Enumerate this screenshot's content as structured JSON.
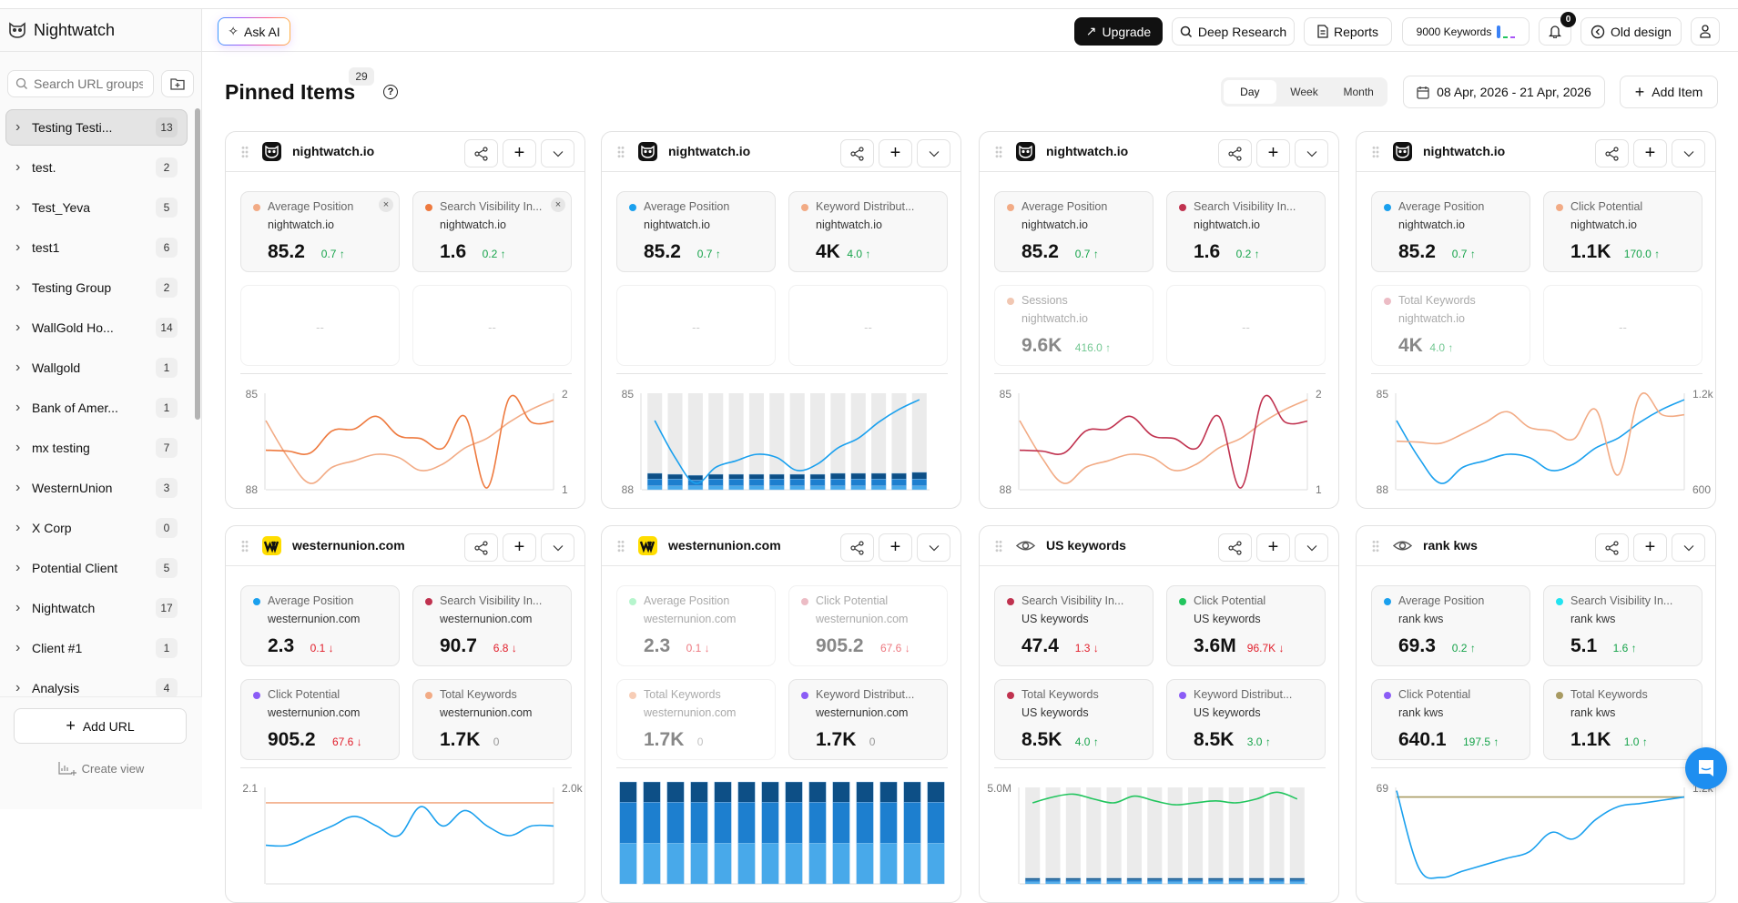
{
  "app": {
    "name": "Nightwatch"
  },
  "sidebar": {
    "search_placeholder": "Search URL groups",
    "groups": [
      {
        "label": "Testing Testi...",
        "count": "13",
        "selected": true
      },
      {
        "label": "test.",
        "count": "2"
      },
      {
        "label": "Test_Yeva",
        "count": "5"
      },
      {
        "label": "test1",
        "count": "6"
      },
      {
        "label": "Testing Group",
        "count": "2"
      },
      {
        "label": "WallGold Ho...",
        "count": "14"
      },
      {
        "label": "Wallgold",
        "count": "1"
      },
      {
        "label": "Bank of Amer...",
        "count": "1"
      },
      {
        "label": "mx testing",
        "count": "7"
      },
      {
        "label": "WesternUnion",
        "count": "3"
      },
      {
        "label": "X Corp",
        "count": "0"
      },
      {
        "label": "Potential Client",
        "count": "5"
      },
      {
        "label": "Nightwatch",
        "count": "17"
      },
      {
        "label": "Client #1",
        "count": "1"
      },
      {
        "label": "Analysis",
        "count": "4"
      }
    ],
    "add_url": "Add URL",
    "create_view": "Create view"
  },
  "topbar": {
    "ask_ai": "Ask AI",
    "upgrade": "Upgrade",
    "deep_research": "Deep Research",
    "reports": "Reports",
    "keywords": "9000 Keywords",
    "notifications": "0",
    "old_design": "Old design"
  },
  "page": {
    "title": "Pinned Items",
    "count": "29",
    "help": "?",
    "periods": [
      "Day",
      "Week",
      "Month"
    ],
    "active_period": "Day",
    "date_range": "08 Apr, 2026 - 21 Apr, 2026",
    "add_item": "Add Item"
  },
  "colors": {
    "up": "#16a34a",
    "down": "#e11d2a",
    "accent": "#1e8ef0"
  },
  "cards": [
    {
      "title": "nightwatch.io",
      "icon": "nightwatch-logo",
      "metrics": [
        {
          "label": "Average Position",
          "sub": "nightwatch.io",
          "value": "85.2",
          "delta": "0.7 ↑",
          "dir": "up",
          "color": "#f2ab85",
          "active": true,
          "removable": true
        },
        {
          "label": "Search Visibility In...",
          "sub": "nightwatch.io",
          "value": "1.6",
          "delta": "0.2 ↑",
          "dir": "up",
          "color": "#ee7a3f",
          "active": true,
          "removable": true
        },
        {
          "empty": true,
          "placeholder": "--"
        },
        {
          "empty": true,
          "placeholder": "--"
        }
      ],
      "chart": {
        "left_top": "85",
        "left_bottom": "88",
        "right_top": "2",
        "right_bottom": "1",
        "ylim_left": [
          85,
          88
        ],
        "ylim_right": [
          1,
          2
        ],
        "left_inverted": true,
        "series": [
          {
            "color": "#f2ab85",
            "axis": "left",
            "values": [
              85.85,
              87.0,
              87.8,
              87.3,
              87.1,
              86.9,
              87.0,
              87.4,
              87.2,
              86.7,
              86.4,
              85.9,
              85.5,
              85.2
            ]
          },
          {
            "color": "#ee7a3f",
            "axis": "right",
            "values": [
              1.41,
              1.4,
              1.38,
              1.61,
              1.63,
              1.76,
              1.56,
              1.53,
              1.43,
              1.76,
              1.02,
              1.95,
              1.7,
              1.71
            ]
          }
        ]
      }
    },
    {
      "title": "nightwatch.io",
      "icon": "nightwatch-logo",
      "metrics": [
        {
          "label": "Average Position",
          "sub": "nightwatch.io",
          "value": "85.2",
          "delta": "0.7 ↑",
          "dir": "up",
          "color": "#1aa0ee",
          "active": true
        },
        {
          "label": "Keyword Distribut...",
          "sub": "nightwatch.io",
          "value": "4K",
          "delta": "4.0 ↑",
          "dir": "up",
          "color": "#f2ab85",
          "active": true
        },
        {
          "empty": true,
          "placeholder": "--"
        },
        {
          "empty": true,
          "placeholder": "--"
        }
      ],
      "chart": {
        "left_top": "85",
        "left_bottom": "88",
        "ylim_left": [
          85,
          88
        ],
        "left_inverted": true,
        "bars": {
          "colors": [
            "#48a9ea",
            "#1d7fcf",
            "#0d4f86"
          ],
          "background": "#ebebeb",
          "segments_pct": [
            [
              4,
              7,
              6
            ],
            [
              4,
              7,
              5
            ],
            [
              4,
              6,
              5
            ],
            [
              4,
              7,
              5
            ],
            [
              4,
              7,
              5
            ],
            [
              4,
              7,
              5
            ],
            [
              4,
              7,
              5
            ],
            [
              4,
              7,
              5
            ],
            [
              4,
              7,
              5
            ],
            [
              4,
              7,
              6
            ],
            [
              4,
              7,
              6
            ],
            [
              4,
              7,
              6
            ],
            [
              4,
              7,
              6
            ],
            [
              4,
              7,
              7
            ]
          ]
        },
        "series": [
          {
            "color": "#1aa0ee",
            "axis": "left",
            "values": [
              85.85,
              87.0,
              87.8,
              87.3,
              87.1,
              86.9,
              87.0,
              87.4,
              87.2,
              86.7,
              86.4,
              85.9,
              85.5,
              85.2
            ]
          }
        ]
      }
    },
    {
      "title": "nightwatch.io",
      "icon": "nightwatch-logo",
      "metrics": [
        {
          "label": "Average Position",
          "sub": "nightwatch.io",
          "value": "85.2",
          "delta": "0.7 ↑",
          "dir": "up",
          "color": "#f2ab85",
          "active": true
        },
        {
          "label": "Search Visibility In...",
          "sub": "nightwatch.io",
          "value": "1.6",
          "delta": "0.2 ↑",
          "dir": "up",
          "color": "#c0324f",
          "active": true
        },
        {
          "label": "Sessions",
          "sub": "nightwatch.io",
          "value": "9.6K",
          "delta": "416.0 ↑",
          "dir": "up",
          "color": "#e8a27e",
          "active": false
        },
        {
          "empty": true,
          "placeholder": "--"
        }
      ],
      "chart": {
        "left_top": "85",
        "left_bottom": "88",
        "right_top": "2",
        "right_bottom": "1",
        "ylim_left": [
          85,
          88
        ],
        "ylim_right": [
          1,
          2
        ],
        "left_inverted": true,
        "series": [
          {
            "color": "#f2ab85",
            "axis": "left",
            "values": [
              85.85,
              87.0,
              87.8,
              87.3,
              87.1,
              86.9,
              87.0,
              87.4,
              87.2,
              86.7,
              86.4,
              85.9,
              85.5,
              85.2
            ]
          },
          {
            "color": "#c0324f",
            "axis": "right",
            "values": [
              1.41,
              1.4,
              1.38,
              1.61,
              1.63,
              1.76,
              1.56,
              1.53,
              1.43,
              1.76,
              1.02,
              1.95,
              1.7,
              1.71
            ]
          }
        ]
      }
    },
    {
      "title": "nightwatch.io",
      "icon": "nightwatch-logo",
      "metrics": [
        {
          "label": "Average Position",
          "sub": "nightwatch.io",
          "value": "85.2",
          "delta": "0.7 ↑",
          "dir": "up",
          "color": "#1aa0ee",
          "active": true
        },
        {
          "label": "Click Potential",
          "sub": "nightwatch.io",
          "value": "1.1K",
          "delta": "170.0 ↑",
          "dir": "up",
          "color": "#f2ab85",
          "active": true
        },
        {
          "label": "Total Keywords",
          "sub": "nightwatch.io",
          "value": "4K",
          "delta": "4.0 ↑",
          "dir": "up",
          "color": "#e0909f",
          "active": false
        },
        {
          "empty": true,
          "placeholder": "--"
        }
      ],
      "chart": {
        "left_top": "85",
        "left_bottom": "88",
        "right_top": "1.2k",
        "right_bottom": "600",
        "ylim_left": [
          85,
          88
        ],
        "ylim_right": [
          600,
          1200
        ],
        "left_inverted": true,
        "series": [
          {
            "color": "#1aa0ee",
            "axis": "left",
            "values": [
              85.85,
              87.0,
              87.8,
              87.3,
              87.1,
              86.9,
              87.0,
              87.4,
              87.2,
              86.7,
              86.4,
              85.9,
              85.5,
              85.2
            ]
          },
          {
            "color": "#f2ab85",
            "axis": "right",
            "values": [
              902,
              896,
              889,
              948,
              1017,
              1085,
              988,
              966,
              915,
              1098,
              691,
              1185,
              1066,
              1066
            ]
          }
        ]
      }
    },
    {
      "title": "westernunion.com",
      "icon": "westernunion-logo",
      "metrics": [
        {
          "label": "Average Position",
          "sub": "westernunion.com",
          "value": "2.3",
          "delta": "0.1 ↓",
          "dir": "down",
          "color": "#1aa0ee",
          "active": true
        },
        {
          "label": "Search Visibility In...",
          "sub": "westernunion.com",
          "value": "90.7",
          "delta": "6.8 ↓",
          "dir": "down",
          "color": "#c0324f",
          "active": true
        },
        {
          "label": "Click Potential",
          "sub": "westernunion.com",
          "value": "905.2",
          "delta": "67.6 ↓",
          "dir": "down",
          "color": "#8b5cf6",
          "active": true
        },
        {
          "label": "Total Keywords",
          "sub": "westernunion.com",
          "value": "1.7K",
          "delta": "0",
          "dir": "none",
          "color": "#f2ab85",
          "active": true
        }
      ],
      "chart": {
        "left_top": "2.1",
        "right_top": "2.0k",
        "ylim_left": [
          2.1,
          2.6
        ],
        "ylim_right": [
          1500,
          2000
        ],
        "left_inverted": true,
        "series": [
          {
            "color": "#f2ab85",
            "axis": "right",
            "values": [
              1920,
              1920,
              1920,
              1920,
              1920,
              1920,
              1920,
              1920,
              1920,
              1920,
              1920,
              1920,
              1920,
              1920
            ]
          },
          {
            "color": "#1aa0ee",
            "axis": "left",
            "values": [
              2.4,
              2.4,
              2.35,
              2.3,
              2.25,
              2.3,
              2.35,
              2.2,
              2.3,
              2.22,
              2.3,
              2.35,
              2.3,
              2.3
            ]
          }
        ]
      }
    },
    {
      "title": "westernunion.com",
      "icon": "westernunion-logo",
      "metrics": [
        {
          "label": "Average Position",
          "sub": "westernunion.com",
          "value": "2.3",
          "delta": "0.1 ↓",
          "dir": "down",
          "color": "#86efac",
          "active": false
        },
        {
          "label": "Click Potential",
          "sub": "westernunion.com",
          "value": "905.2",
          "delta": "67.6 ↓",
          "dir": "down",
          "color": "#e0909f",
          "active": false
        },
        {
          "label": "Total Keywords",
          "sub": "westernunion.com",
          "value": "1.7K",
          "delta": "0",
          "dir": "none",
          "color": "#f2ab85",
          "active": false
        },
        {
          "label": "Keyword Distribut...",
          "sub": "westernunion.com",
          "value": "1.7K",
          "delta": "0",
          "dir": "none",
          "color": "#8b5cf6",
          "active": true
        }
      ],
      "chart": {
        "bars": {
          "colors": [
            "#48a9ea",
            "#1d7fcf",
            "#0d4f86"
          ],
          "background": "#ebebeb",
          "segments_pct": [
            [
              40,
              40,
              20
            ],
            [
              40,
              40,
              20
            ],
            [
              40,
              40,
              20
            ],
            [
              40,
              40,
              20
            ],
            [
              40,
              40,
              20
            ],
            [
              40,
              40,
              20
            ],
            [
              40,
              40,
              20
            ],
            [
              40,
              40,
              20
            ],
            [
              40,
              40,
              20
            ],
            [
              40,
              40,
              20
            ],
            [
              40,
              40,
              20
            ],
            [
              40,
              40,
              20
            ],
            [
              40,
              40,
              20
            ],
            [
              40,
              40,
              20
            ]
          ]
        },
        "series": []
      }
    },
    {
      "title": "US keywords",
      "icon": "eye-icon",
      "metrics": [
        {
          "label": "Search Visibility In...",
          "sub": "US keywords",
          "value": "47.4",
          "delta": "1.3 ↓",
          "dir": "down",
          "color": "#c0324f",
          "active": true
        },
        {
          "label": "Click Potential",
          "sub": "US keywords",
          "value": "3.6M",
          "delta": "96.7K ↓",
          "dir": "down",
          "color": "#22c55e",
          "active": true
        },
        {
          "label": "Total Keywords",
          "sub": "US keywords",
          "value": "8.5K",
          "delta": "4.0 ↑",
          "dir": "up",
          "color": "#c0324f",
          "active": true
        },
        {
          "label": "Keyword Distribut...",
          "sub": "US keywords",
          "value": "8.5K",
          "delta": "3.0 ↑",
          "dir": "up",
          "color": "#8b5cf6",
          "active": true
        }
      ],
      "chart": {
        "left_top": "5.0M",
        "ylim_left": [
          0,
          5000000
        ],
        "left_inverted": false,
        "bars": {
          "colors": [
            "#48a9ea",
            "#1d7fcf",
            "#0d4f86"
          ],
          "background": "#ebebeb",
          "segments_pct": [
            [
              2,
              2,
              2
            ],
            [
              2,
              2,
              2
            ],
            [
              2,
              2,
              2
            ],
            [
              2,
              2,
              2
            ],
            [
              2,
              2,
              2
            ],
            [
              2,
              2,
              2
            ],
            [
              2,
              2,
              2
            ],
            [
              2,
              2,
              2
            ],
            [
              2,
              2,
              2
            ],
            [
              2,
              2,
              2
            ],
            [
              2,
              2,
              2
            ],
            [
              2,
              2,
              2
            ],
            [
              2,
              2,
              2
            ],
            [
              2,
              2,
              2
            ]
          ]
        },
        "series": [
          {
            "color": "#22c55e",
            "axis": "left",
            "values": [
              4200000,
              4500000,
              4650000,
              4400000,
              4200000,
              4550000,
              4300000,
              4100000,
              4200000,
              4300000,
              4200000,
              4400000,
              4750000,
              4400000
            ]
          }
        ]
      }
    },
    {
      "title": "rank kws",
      "icon": "eye-icon",
      "metrics": [
        {
          "label": "Average Position",
          "sub": "rank kws",
          "value": "69.3",
          "delta": "0.2 ↑",
          "dir": "up",
          "color": "#1aa0ee",
          "active": true
        },
        {
          "label": "Search Visibility In...",
          "sub": "rank kws",
          "value": "5.1",
          "delta": "1.6 ↑",
          "dir": "up",
          "color": "#22e3f0",
          "active": true
        },
        {
          "label": "Click Potential",
          "sub": "rank kws",
          "value": "640.1",
          "delta": "197.5 ↑",
          "dir": "up",
          "color": "#8b5cf6",
          "active": true
        },
        {
          "label": "Total Keywords",
          "sub": "rank kws",
          "value": "1.1K",
          "delta": "1.0 ↑",
          "dir": "up",
          "color": "#a89a62",
          "active": true
        }
      ],
      "chart": {
        "left_top": "69",
        "right_top": "1.2k",
        "ylim_left": [
          69,
          72
        ],
        "ylim_right": [
          900,
          1200
        ],
        "left_inverted": true,
        "series": [
          {
            "color": "#a89a62",
            "axis": "right",
            "values": [
              1170,
              1170,
              1170,
              1170,
              1170,
              1170,
              1170,
              1170,
              1170,
              1170,
              1170,
              1170,
              1170,
              1170
            ]
          },
          {
            "color": "#1aa0ee",
            "axis": "left",
            "values": [
              69.1,
              71.5,
              71.8,
              71.6,
              71.4,
              71.2,
              71.0,
              70.4,
              70.6,
              70.0,
              69.6,
              69.5,
              69.4,
              69.3
            ]
          }
        ]
      }
    }
  ]
}
